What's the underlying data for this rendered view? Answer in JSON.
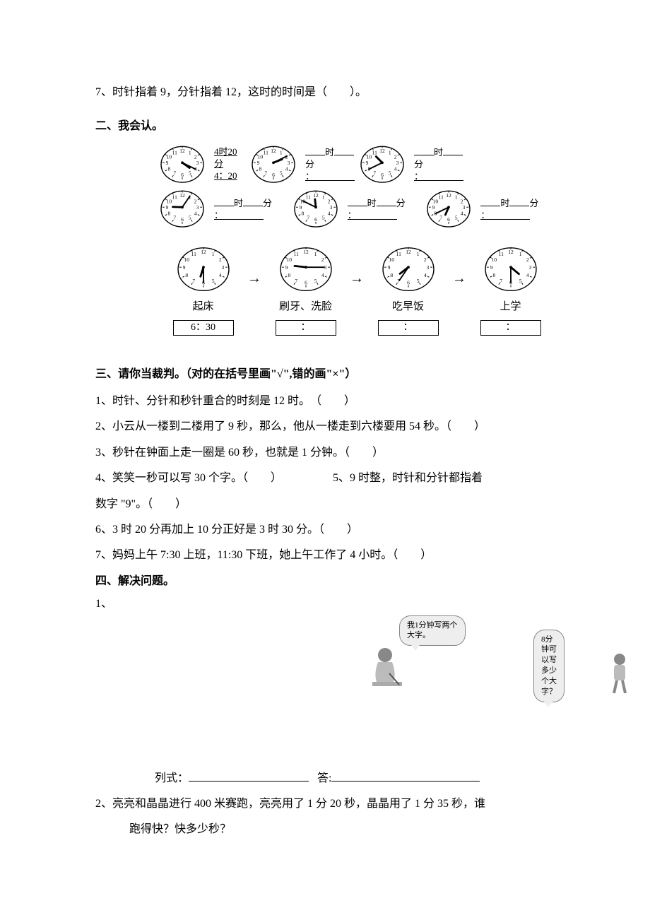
{
  "q7": "7、时针指着 9，分针指着 12，这时的时间是（　　）。",
  "section2_title": "二、我会认。",
  "example": {
    "line1": "4时20分",
    "line2": "4：20"
  },
  "blank_shi": "时",
  "blank_fen": "分",
  "row1_clocks": [
    {
      "h": 4,
      "m": 20
    },
    {
      "h": 2,
      "m": 10
    },
    {
      "h": 10,
      "m": 40
    }
  ],
  "row2_clocks": [
    {
      "h": 9,
      "m": 5
    },
    {
      "h": 11,
      "m": 50
    },
    {
      "h": 6,
      "m": 40
    }
  ],
  "seq": [
    {
      "label": "起床",
      "box": "6：30",
      "h": 6,
      "m": 30
    },
    {
      "label": "刷牙、洗脸",
      "box": "：",
      "h": 9,
      "m": 15
    },
    {
      "label": "吃早饭",
      "box": "：",
      "h": 7,
      "m": 35
    },
    {
      "label": "上学",
      "box": "：",
      "h": 4,
      "m": 30
    }
  ],
  "section3_title": "三、请你当裁判。（对的在括号里画\"√\",错的画\"×\"）",
  "s3": {
    "q1": "1、时针、分针和秒针重合的时刻是 12 时。　（　　）",
    "q2": "2、小云从一楼到二楼用了 9 秒，那么，他从一楼走到六楼要用 54 秒。（　　）",
    "q3": "3、秒针在钟面上走一圈是 60 秒，也就是 1 分钟。（　　）",
    "q4a": "4、笑笑一秒可以写 30 个字。（　　）",
    "q4b": "5、9 时整，时针和分针都指着",
    "q5_tail": "数字 \"9\"。（　　）",
    "q6": "6、3 时 20 分再加上 10 分正好是 3 时 30 分。（　　）",
    "q7": "7、妈妈上午 7:30 上班，11:30 下班，她上午工作了 4 小时。（　　）"
  },
  "section4_title": "四、解决问题。",
  "s4q1_num": "1、",
  "bubble1_l1": "我1分钟写两个",
  "bubble1_l2": "大字。",
  "bubble2_l1": "8分钟可以写",
  "bubble2_l2": "多少个大字？",
  "lieshi": "列式：",
  "da": "答:",
  "s4q2_a": "2、亮亮和晶晶进行 400 米赛跑，亮亮用了 1 分 20 秒，晶晶用了 1 分 35 秒，谁",
  "s4q2_b": "跑得快？快多少秒？",
  "clock_style": {
    "stroke": "#000000",
    "fill": "#ffffff",
    "size_small": 66,
    "size_seq": 78,
    "number_font": 8
  }
}
